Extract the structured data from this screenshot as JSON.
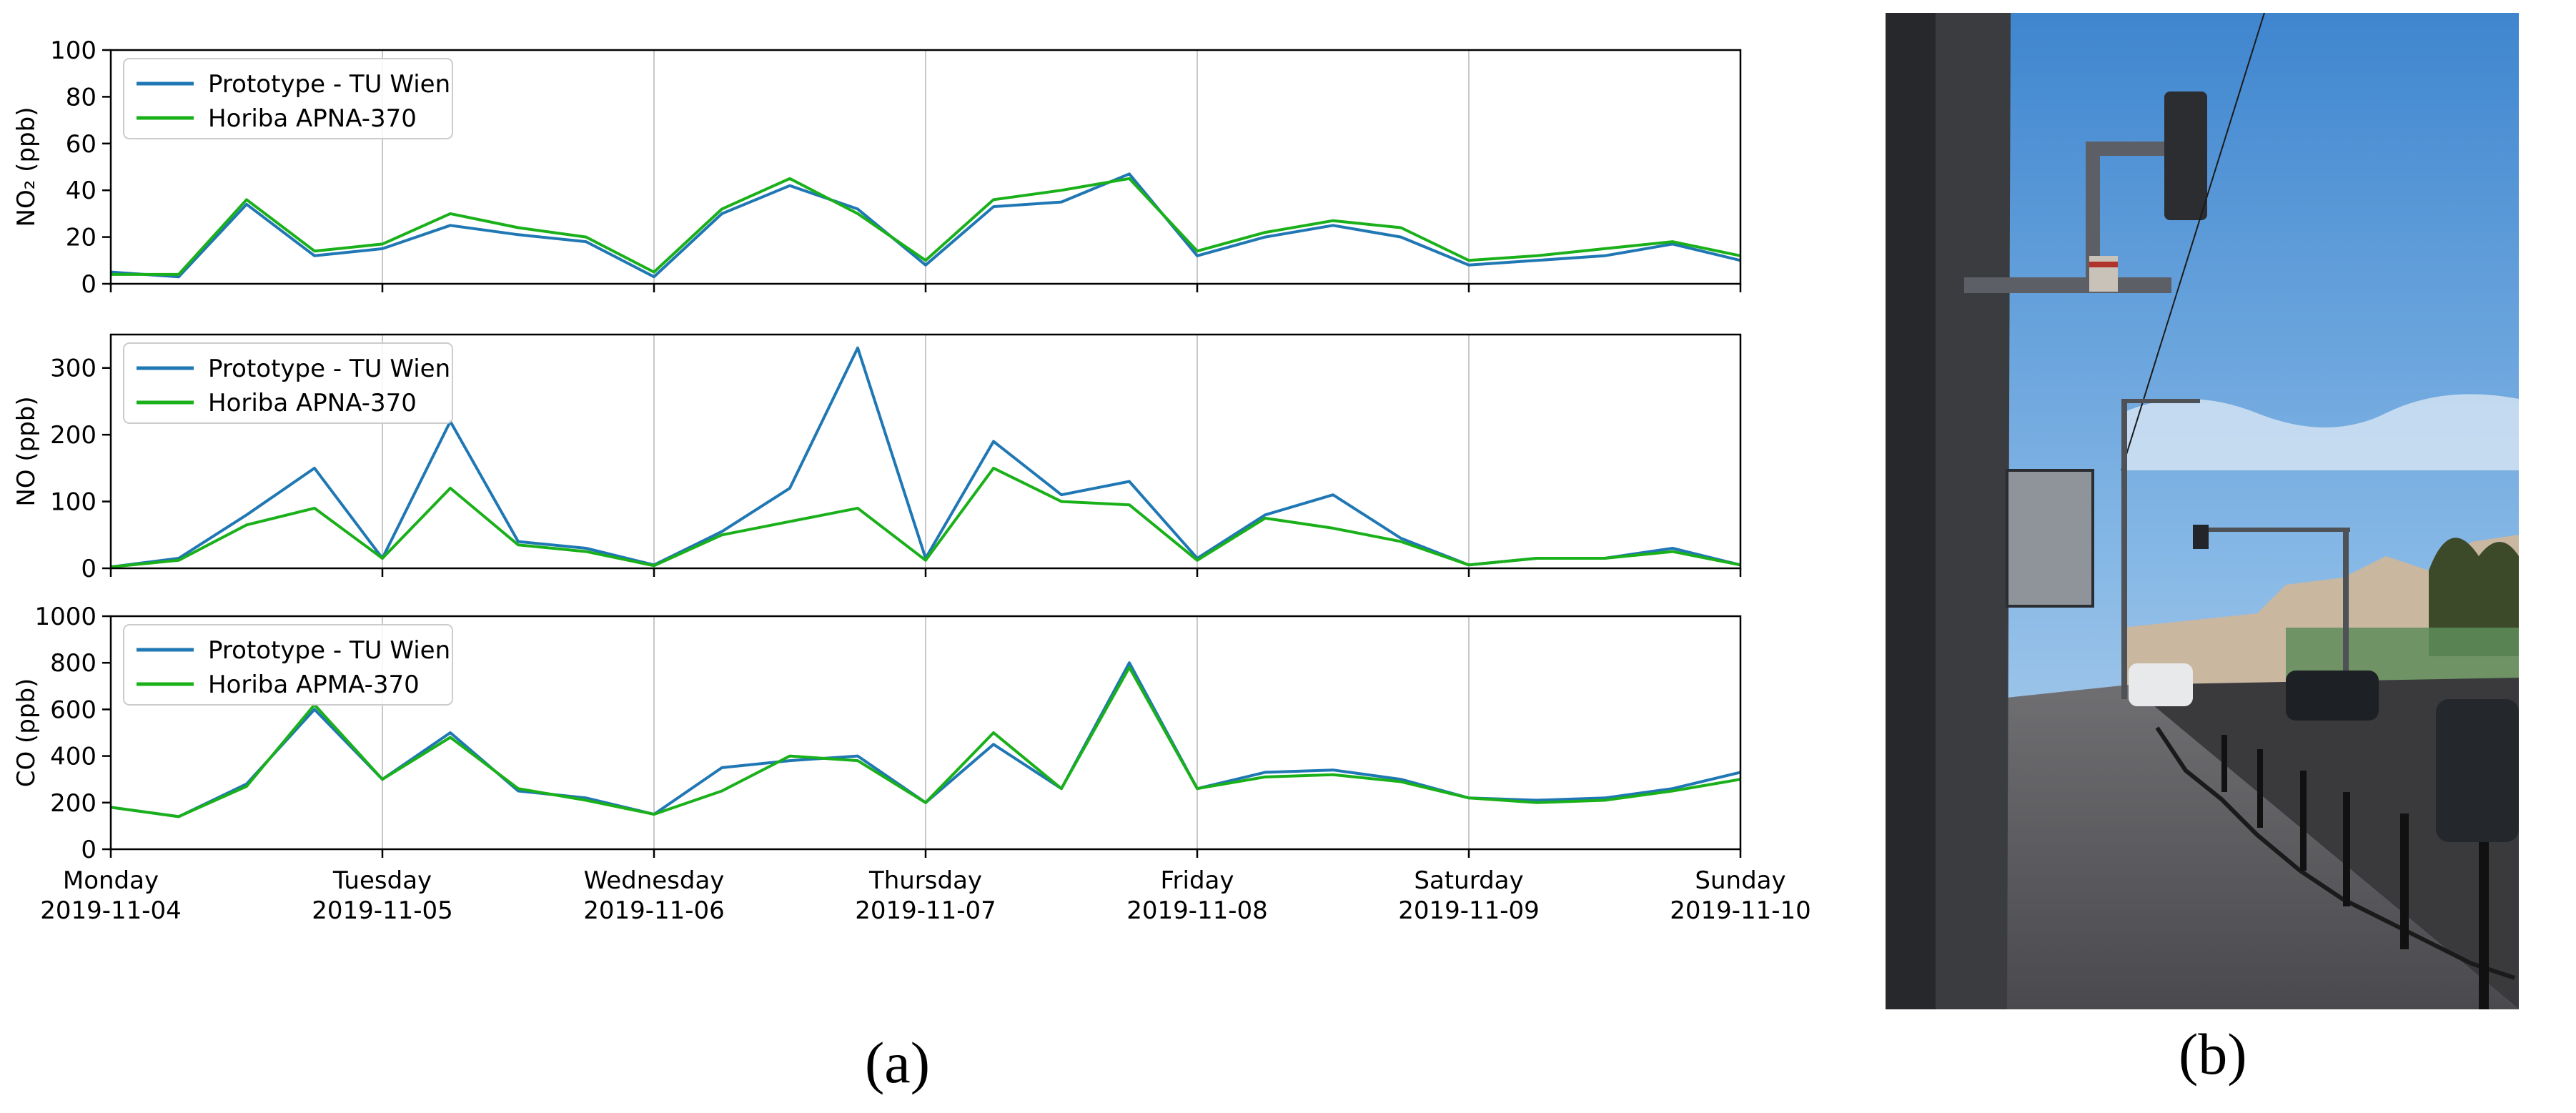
{
  "figure": {
    "panel_a_label": "(a)",
    "panel_b_label": "(b)"
  },
  "x_axis": {
    "ticks": [
      {
        "day": "Monday",
        "date": "2019-11-04"
      },
      {
        "day": "Tuesday",
        "date": "2019-11-05"
      },
      {
        "day": "Wednesday",
        "date": "2019-11-06"
      },
      {
        "day": "Thursday",
        "date": "2019-11-07"
      },
      {
        "day": "Friday",
        "date": "2019-11-08"
      },
      {
        "day": "Saturday",
        "date": "2019-11-09"
      },
      {
        "day": "Sunday",
        "date": "2019-11-10"
      }
    ]
  },
  "colors": {
    "prototype": "#1f77b4",
    "horiba": "#1ab01a"
  },
  "chart_data": [
    {
      "type": "line",
      "ylabel": "NO₂ (ppb)",
      "ylim": [
        0,
        100
      ],
      "yticks": [
        0,
        20,
        40,
        60,
        80,
        100
      ],
      "grid": "vertical",
      "legend_position": "top-left",
      "x": [
        0,
        0.25,
        0.5,
        0.75,
        1,
        1.25,
        1.5,
        1.75,
        2,
        2.25,
        2.5,
        2.75,
        3,
        3.25,
        3.5,
        3.75,
        4,
        4.25,
        4.5,
        4.75,
        5,
        5.25,
        5.5,
        5.75,
        6
      ],
      "series": [
        {
          "name": "Prototype - TU Wien",
          "values": [
            5,
            3,
            34,
            12,
            15,
            25,
            21,
            18,
            3,
            30,
            42,
            32,
            8,
            33,
            35,
            47,
            12,
            20,
            25,
            20,
            8,
            10,
            12,
            17,
            10
          ]
        },
        {
          "name": "Horiba APNA-370",
          "values": [
            4,
            4,
            36,
            14,
            17,
            30,
            24,
            20,
            5,
            32,
            45,
            30,
            10,
            36,
            40,
            45,
            14,
            22,
            27,
            24,
            10,
            12,
            15,
            18,
            12
          ]
        }
      ]
    },
    {
      "type": "line",
      "ylabel": "NO (ppb)",
      "ylim": [
        0,
        350
      ],
      "yticks": [
        0,
        100,
        200,
        300
      ],
      "grid": "vertical",
      "legend_position": "top-left",
      "x": [
        0,
        0.25,
        0.5,
        0.75,
        1,
        1.25,
        1.5,
        1.75,
        2,
        2.25,
        2.5,
        2.75,
        3,
        3.25,
        3.5,
        3.75,
        4,
        4.25,
        4.5,
        4.75,
        5,
        5.25,
        5.5,
        5.75,
        6
      ],
      "series": [
        {
          "name": "Prototype - TU Wien",
          "values": [
            2,
            15,
            80,
            150,
            15,
            220,
            40,
            30,
            5,
            55,
            120,
            330,
            15,
            190,
            110,
            130,
            15,
            80,
            110,
            45,
            5,
            15,
            15,
            30,
            5
          ]
        },
        {
          "name": "Horiba APNA-370",
          "values": [
            2,
            12,
            65,
            90,
            15,
            120,
            35,
            25,
            4,
            50,
            70,
            90,
            12,
            150,
            100,
            95,
            12,
            75,
            60,
            40,
            5,
            15,
            15,
            25,
            5
          ]
        }
      ]
    },
    {
      "type": "line",
      "ylabel": "CO (ppb)",
      "ylim": [
        0,
        1000
      ],
      "yticks": [
        0,
        200,
        400,
        600,
        800,
        1000
      ],
      "grid": "vertical",
      "legend_position": "top-left",
      "x": [
        0,
        0.25,
        0.5,
        0.75,
        1,
        1.25,
        1.5,
        1.75,
        2,
        2.25,
        2.5,
        2.75,
        3,
        3.25,
        3.5,
        3.75,
        4,
        4.25,
        4.5,
        4.75,
        5,
        5.25,
        5.5,
        5.75,
        6
      ],
      "series": [
        {
          "name": "Prototype - TU Wien",
          "values": [
            180,
            140,
            280,
            600,
            300,
            500,
            250,
            220,
            150,
            350,
            380,
            400,
            200,
            450,
            260,
            800,
            260,
            330,
            340,
            300,
            220,
            210,
            220,
            260,
            330
          ]
        },
        {
          "name": "Horiba APMA-370",
          "values": [
            180,
            140,
            270,
            620,
            300,
            480,
            260,
            210,
            150,
            250,
            400,
            380,
            200,
            500,
            260,
            780,
            260,
            310,
            320,
            290,
            220,
            200,
            210,
            250,
            300
          ]
        }
      ]
    }
  ]
}
